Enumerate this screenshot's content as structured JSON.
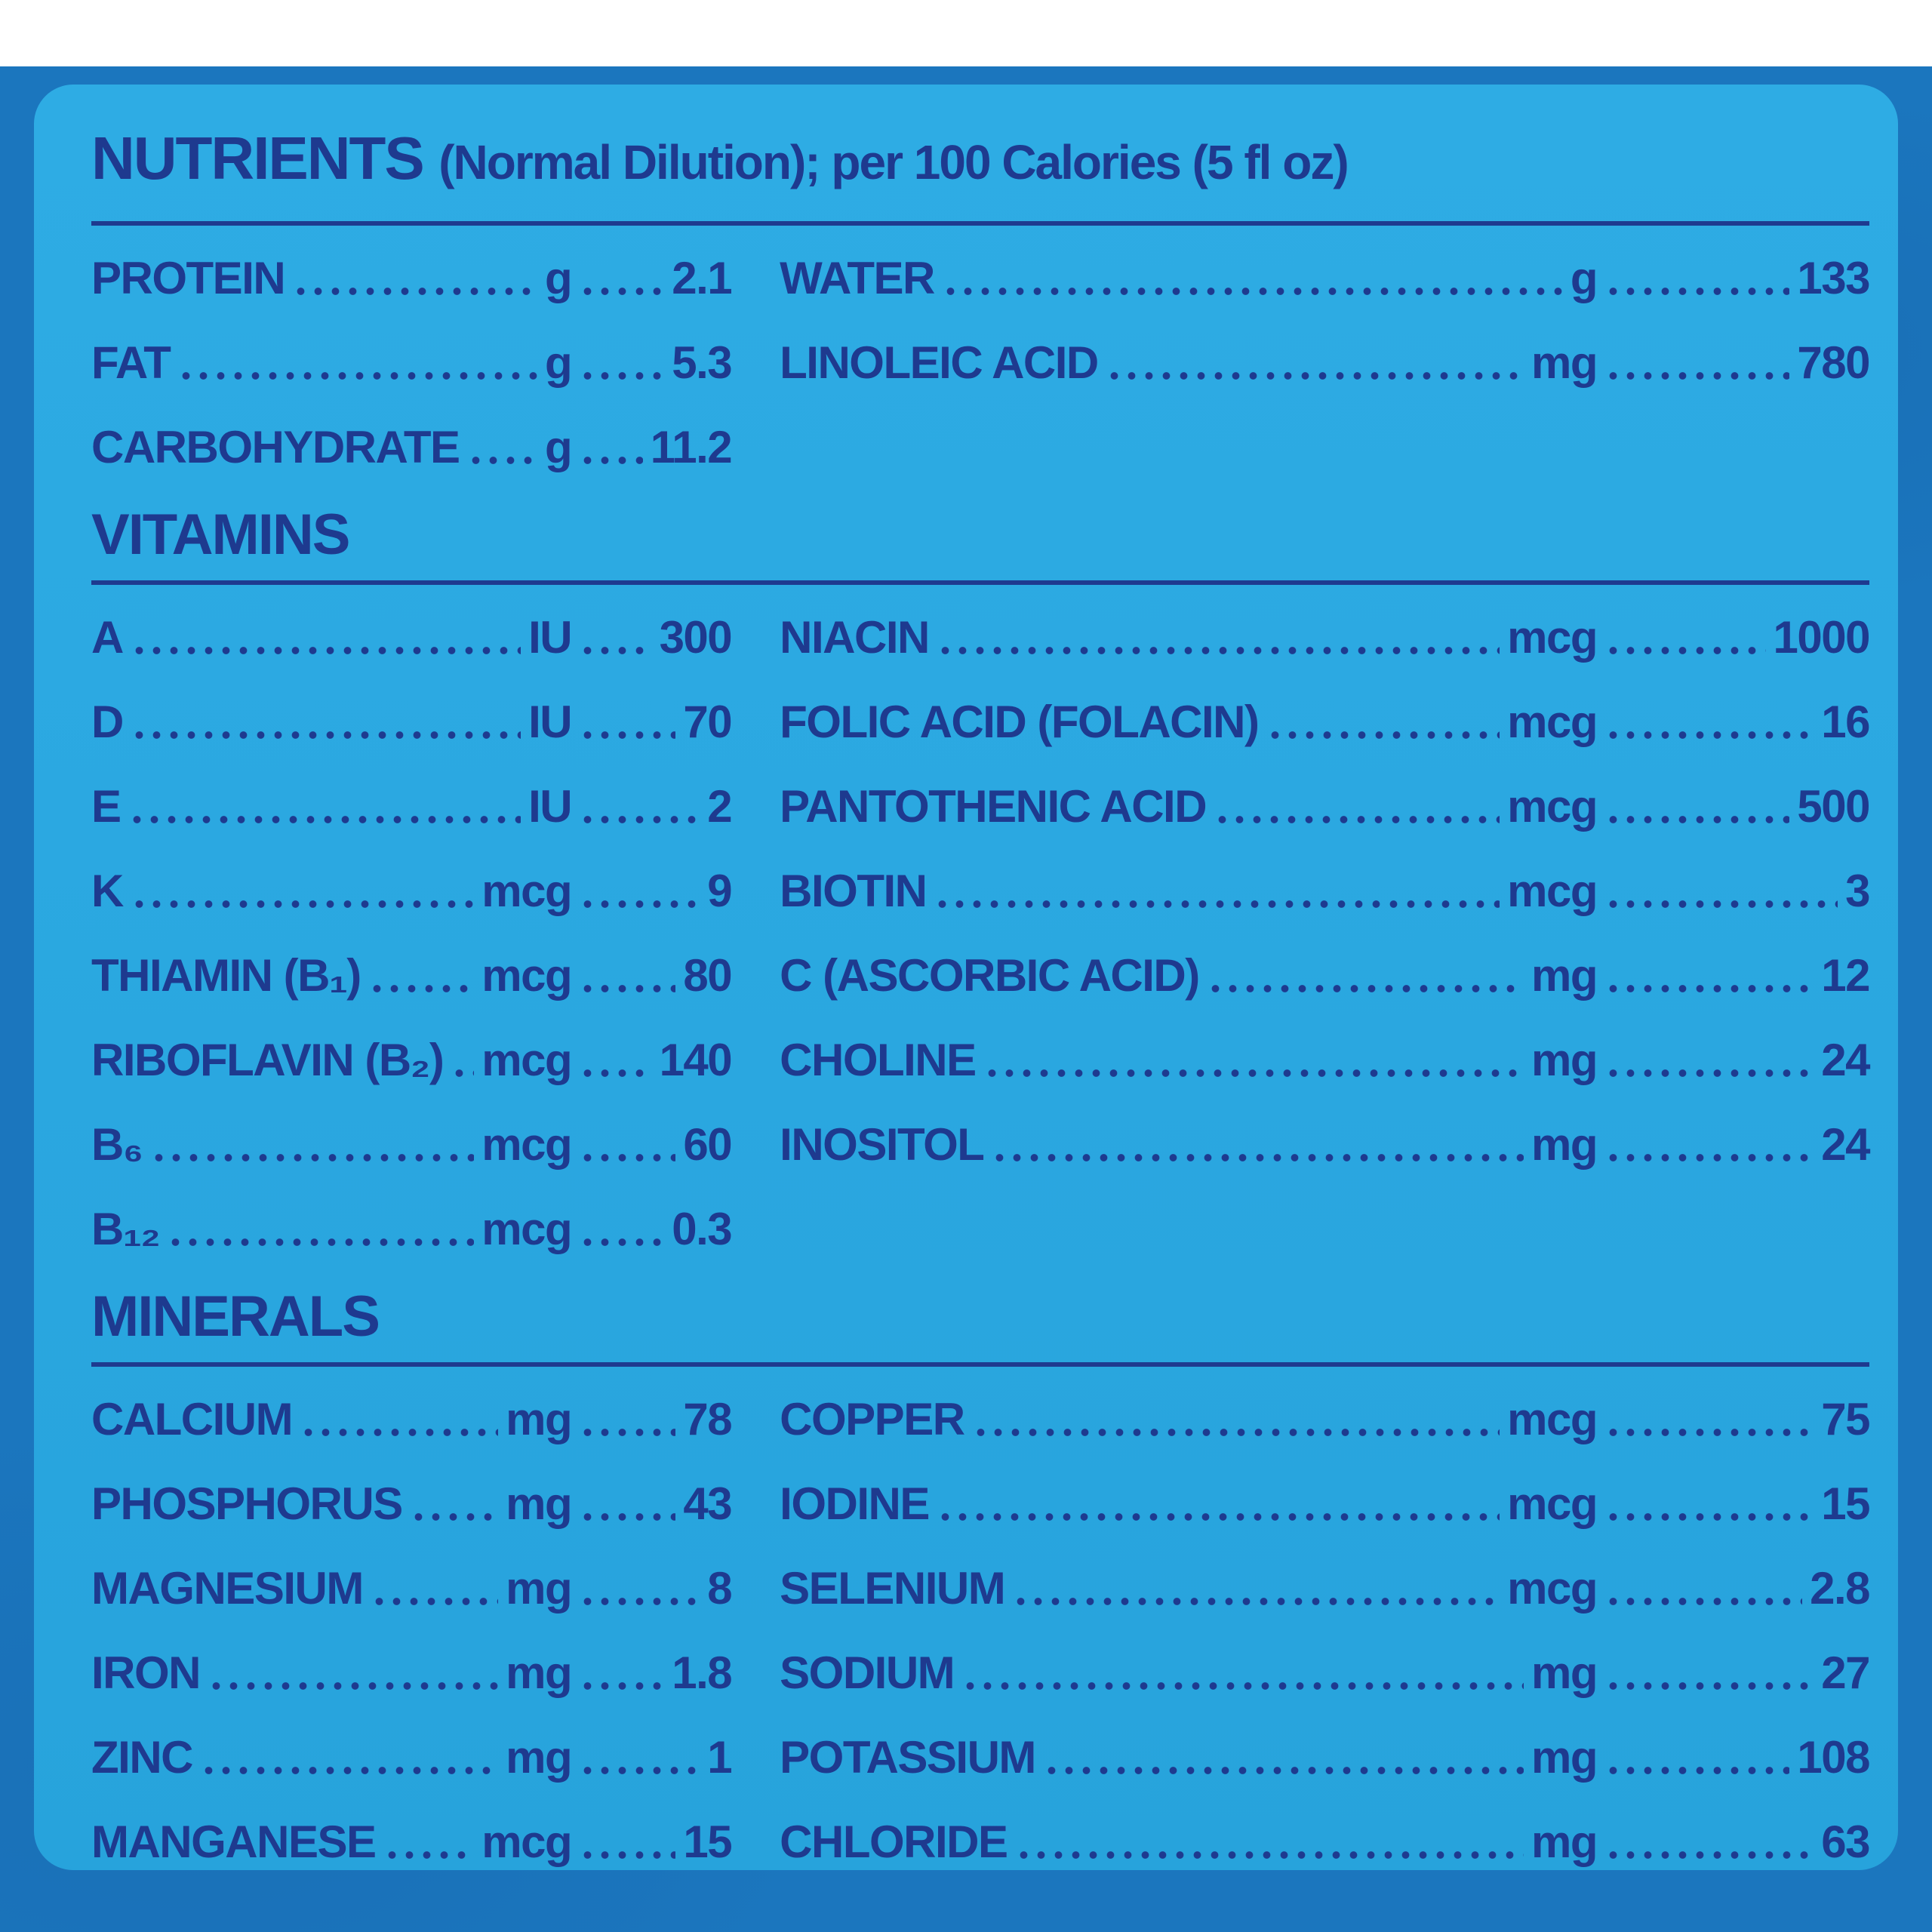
{
  "header": {
    "title": "NUTRIENTS",
    "subtitle": "(Normal Dilution); per 100 Calories (5 fl oz)"
  },
  "macronutrients": {
    "left": [
      {
        "label": "PROTEIN",
        "unit": "g",
        "value": "2.1"
      },
      {
        "label": "FAT",
        "unit": "g",
        "value": "5.3"
      },
      {
        "label": "CARBOHYDRATE",
        "unit": "g",
        "value": "11.2"
      }
    ],
    "right": [
      {
        "label": "WATER",
        "unit": "g",
        "value": "133"
      },
      {
        "label": "LINOLEIC ACID",
        "unit": "mg",
        "value": "780"
      }
    ]
  },
  "vitamins": {
    "heading": "VITAMINS",
    "left": [
      {
        "label": "A",
        "unit": "IU",
        "value": "300"
      },
      {
        "label": "D",
        "unit": "IU",
        "value": "70"
      },
      {
        "label": "E",
        "unit": "IU",
        "value": "2"
      },
      {
        "label": "K",
        "unit": "mcg",
        "value": "9"
      },
      {
        "label": "THIAMIN (B₁)",
        "unit": "mcg",
        "value": "80"
      },
      {
        "label": "RIBOFLAVIN (B₂)",
        "unit": "mcg",
        "value": "140"
      },
      {
        "label": "B₆",
        "unit": "mcg",
        "value": "60"
      },
      {
        "label": "B₁₂",
        "unit": "mcg",
        "value": "0.3"
      }
    ],
    "right": [
      {
        "label": "NIACIN",
        "unit": "mcg",
        "value": "1000"
      },
      {
        "label": "FOLIC ACID (FOLACIN)",
        "unit": "mcg",
        "value": "16"
      },
      {
        "label": "PANTOTHENIC ACID",
        "unit": "mcg",
        "value": "500"
      },
      {
        "label": "BIOTIN",
        "unit": "mcg",
        "value": "3"
      },
      {
        "label": "C (ASCORBIC ACID)",
        "unit": "mg",
        "value": "12"
      },
      {
        "label": "CHOLINE",
        "unit": "mg",
        "value": "24"
      },
      {
        "label": "INOSITOL",
        "unit": "mg",
        "value": "24"
      }
    ]
  },
  "minerals": {
    "heading": "MINERALS",
    "left": [
      {
        "label": "CALCIUM",
        "unit": "mg",
        "value": "78"
      },
      {
        "label": "PHOSPHORUS",
        "unit": "mg",
        "value": "43"
      },
      {
        "label": "MAGNESIUM",
        "unit": "mg",
        "value": "8"
      },
      {
        "label": "IRON",
        "unit": "mg",
        "value": "1.8"
      },
      {
        "label": "ZINC",
        "unit": "mg",
        "value": "1"
      },
      {
        "label": "MANGANESE",
        "unit": "mcg",
        "value": "15"
      }
    ],
    "right": [
      {
        "label": "COPPER",
        "unit": "mcg",
        "value": "75"
      },
      {
        "label": "IODINE",
        "unit": "mcg",
        "value": "15"
      },
      {
        "label": "SELENIUM",
        "unit": "mcg",
        "value": "2.8"
      },
      {
        "label": "SODIUM",
        "unit": "mg",
        "value": "27"
      },
      {
        "label": "POTASSIUM",
        "unit": "mg",
        "value": "108"
      },
      {
        "label": "CHLORIDE",
        "unit": "mg",
        "value": "63"
      }
    ]
  },
  "colors": {
    "background_blue": "#1B76BE",
    "panel_blue": "#2AA7E0",
    "ink_navy": "#1E3A8F",
    "top_strip": "#FFFFFF"
  }
}
